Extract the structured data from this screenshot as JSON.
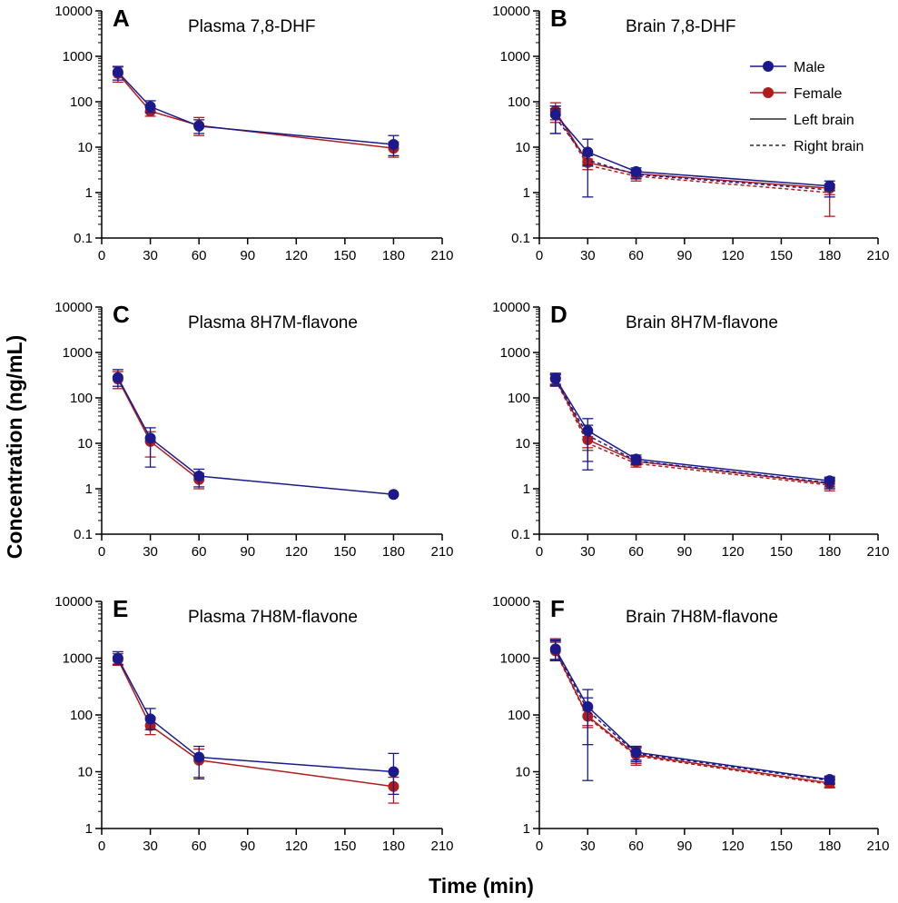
{
  "figure": {
    "ylabel": "Concentration (ng/mL)",
    "xlabel": "Time (min)"
  },
  "legend": {
    "items": [
      {
        "label": "Male",
        "kind": "marker",
        "color": "#1a1a8c"
      },
      {
        "label": "Female",
        "kind": "marker",
        "color": "#b01c1c"
      },
      {
        "label": "Left brain",
        "kind": "solid"
      },
      {
        "label": "Right brain",
        "kind": "dashed"
      }
    ]
  },
  "colors": {
    "male": "#1a1a8c",
    "female": "#b01c1c"
  },
  "chart_data": [
    {
      "letter": "A",
      "title": "Plasma 7,8-DHF",
      "type": "line",
      "xlim": [
        0,
        210
      ],
      "xticks": [
        0,
        30,
        60,
        90,
        120,
        150,
        180,
        210
      ],
      "ylim": [
        0.1,
        10000
      ],
      "yscale": "log",
      "yticks": [
        0.1,
        1,
        10,
        100,
        1000,
        10000
      ],
      "ytick_labels": [
        "0.1",
        "1",
        "10",
        "100",
        "1000",
        "10000"
      ],
      "x": [
        10,
        30,
        60,
        180
      ],
      "series": [
        {
          "name": "Female",
          "color": "female",
          "dash": false,
          "values": [
            420,
            62,
            30,
            9.5
          ],
          "err_low": [
            270,
            48,
            18,
            6
          ],
          "err_high": [
            580,
            80,
            45,
            13
          ]
        },
        {
          "name": "Male",
          "color": "male",
          "dash": false,
          "values": [
            450,
            78,
            29,
            11.5
          ],
          "err_low": [
            300,
            58,
            20,
            6.5
          ],
          "err_high": [
            600,
            105,
            40,
            18
          ]
        }
      ]
    },
    {
      "letter": "B",
      "title": "Brain 7,8-DHF",
      "type": "line",
      "xlim": [
        0,
        210
      ],
      "xticks": [
        0,
        30,
        60,
        90,
        120,
        150,
        180,
        210
      ],
      "ylim": [
        0.1,
        10000
      ],
      "yscale": "log",
      "yticks": [
        0.1,
        1,
        10,
        100,
        1000,
        10000
      ],
      "ytick_labels": [
        "0.1",
        "1",
        "10",
        "100",
        "1000",
        "10000"
      ],
      "x": [
        10,
        30,
        60,
        180
      ],
      "series": [
        {
          "name": "Female right brain",
          "color": "female",
          "dash": true,
          "values": [
            58,
            4.0,
            2.3,
            1.0
          ],
          "err_low": [
            35,
            3.2,
            1.8,
            0.3
          ],
          "err_high": [
            80,
            5.0,
            2.8,
            1.3
          ]
        },
        {
          "name": "Female left brain",
          "color": "female",
          "dash": false,
          "values": [
            62,
            4.6,
            2.6,
            1.25
          ],
          "err_low": [
            40,
            3.8,
            2.1,
            0.9
          ],
          "err_high": [
            95,
            5.5,
            3.0,
            1.5
          ]
        },
        {
          "name": "Male right brain",
          "color": "male",
          "dash": true,
          "values": [
            45,
            5.2,
            2.5,
            1.15
          ],
          "err_low": [
            20,
            4.0,
            2.0,
            0.8
          ],
          "err_high": [
            70,
            6.5,
            3.1,
            1.5
          ]
        },
        {
          "name": "Male left brain",
          "color": "male",
          "dash": false,
          "values": [
            52,
            7.8,
            2.9,
            1.4
          ],
          "err_low": [
            20,
            0.8,
            2.3,
            1.1
          ],
          "err_high": [
            80,
            15,
            3.5,
            1.8
          ]
        }
      ]
    },
    {
      "letter": "C",
      "title": "Plasma 8H7M-flavone",
      "type": "line",
      "xlim": [
        0,
        210
      ],
      "xticks": [
        0,
        30,
        60,
        90,
        120,
        150,
        180,
        210
      ],
      "ylim": [
        0.1,
        10000
      ],
      "yscale": "log",
      "yticks": [
        0.1,
        1,
        10,
        100,
        1000,
        10000
      ],
      "ytick_labels": [
        "0.1",
        "1",
        "10",
        "100",
        "1000",
        "10000"
      ],
      "x": [
        10,
        30,
        60,
        180
      ],
      "series": [
        {
          "name": "Female",
          "color": "female",
          "dash": false,
          "values": [
            260,
            11,
            1.6,
            null
          ],
          "err_low": [
            160,
            5.0,
            1.0,
            null
          ],
          "err_high": [
            380,
            18,
            2.2,
            null
          ]
        },
        {
          "name": "Male",
          "color": "male",
          "dash": false,
          "values": [
            280,
            13,
            1.9,
            0.75
          ],
          "err_low": [
            180,
            3.0,
            1.1,
            null
          ],
          "err_high": [
            420,
            22,
            2.7,
            null
          ]
        }
      ]
    },
    {
      "letter": "D",
      "title": "Brain 8H7M-flavone",
      "type": "line",
      "xlim": [
        0,
        210
      ],
      "xticks": [
        0,
        30,
        60,
        90,
        120,
        150,
        180,
        210
      ],
      "ylim": [
        0.1,
        10000
      ],
      "yscale": "log",
      "yticks": [
        0.1,
        1,
        10,
        100,
        1000,
        10000
      ],
      "ytick_labels": [
        "0.1",
        "1",
        "10",
        "100",
        "1000",
        "10000"
      ],
      "x": [
        10,
        30,
        60,
        180
      ],
      "series": [
        {
          "name": "Female right brain",
          "color": "female",
          "dash": true,
          "values": [
            250,
            10,
            3.6,
            1.2
          ],
          "err_low": [
            180,
            7,
            3.0,
            0.9
          ],
          "err_high": [
            320,
            14,
            4.4,
            1.5
          ]
        },
        {
          "name": "Female left brain",
          "color": "female",
          "dash": false,
          "values": [
            260,
            12,
            4.0,
            1.3
          ],
          "err_low": [
            190,
            8,
            3.3,
            1.0
          ],
          "err_high": [
            330,
            17,
            4.8,
            1.6
          ]
        },
        {
          "name": "Male right brain",
          "color": "male",
          "dash": true,
          "values": [
            255,
            15,
            4.1,
            1.35
          ],
          "err_low": [
            185,
            4,
            3.4,
            1.0
          ],
          "err_high": [
            325,
            25,
            5.0,
            1.7
          ]
        },
        {
          "name": "Male left brain",
          "color": "male",
          "dash": false,
          "values": [
            270,
            19,
            4.5,
            1.5
          ],
          "err_low": [
            200,
            2.6,
            3.6,
            1.1
          ],
          "err_high": [
            350,
            35,
            5.5,
            1.8
          ]
        }
      ]
    },
    {
      "letter": "E",
      "title": "Plasma 7H8M-flavone",
      "type": "line",
      "xlim": [
        0,
        210
      ],
      "xticks": [
        0,
        30,
        60,
        90,
        120,
        150,
        180,
        210
      ],
      "ylim": [
        1,
        10000
      ],
      "yscale": "log",
      "yticks": [
        1,
        10,
        100,
        1000,
        10000
      ],
      "ytick_labels": [
        "1",
        "10",
        "100",
        "1000",
        "10000"
      ],
      "x": [
        10,
        30,
        60,
        180
      ],
      "series": [
        {
          "name": "Female",
          "color": "female",
          "dash": false,
          "values": [
            950,
            65,
            16,
            5.5
          ],
          "err_low": [
            750,
            45,
            8,
            2.8
          ],
          "err_high": [
            1200,
            90,
            25,
            8
          ]
        },
        {
          "name": "Male",
          "color": "male",
          "dash": false,
          "values": [
            1000,
            85,
            18,
            10
          ],
          "err_low": [
            780,
            55,
            7.5,
            4
          ],
          "err_high": [
            1300,
            130,
            28,
            21
          ]
        }
      ]
    },
    {
      "letter": "F",
      "title": "Brain 7H8M-flavone",
      "type": "line",
      "xlim": [
        0,
        210
      ],
      "xticks": [
        0,
        30,
        60,
        90,
        120,
        150,
        180,
        210
      ],
      "ylim": [
        1,
        10000
      ],
      "yscale": "log",
      "yticks": [
        1,
        10,
        100,
        1000,
        10000
      ],
      "ytick_labels": [
        "1",
        "10",
        "100",
        "1000",
        "10000"
      ],
      "x": [
        10,
        30,
        60,
        180
      ],
      "series": [
        {
          "name": "Female right brain",
          "color": "female",
          "dash": true,
          "values": [
            1300,
            90,
            19,
            6.0
          ],
          "err_low": [
            900,
            60,
            13,
            5.2
          ],
          "err_high": [
            1900,
            120,
            26,
            7.0
          ]
        },
        {
          "name": "Female left brain",
          "color": "female",
          "dash": false,
          "values": [
            1350,
            95,
            20,
            6.3
          ],
          "err_low": [
            950,
            65,
            14,
            5.4
          ],
          "err_high": [
            2200,
            130,
            27,
            7.5
          ]
        },
        {
          "name": "Male right brain",
          "color": "male",
          "dash": true,
          "values": [
            1380,
            120,
            21,
            7.0
          ],
          "err_low": [
            900,
            30,
            15,
            6.0
          ],
          "err_high": [
            2000,
            200,
            28,
            8.0
          ]
        },
        {
          "name": "Male left brain",
          "color": "male",
          "dash": false,
          "values": [
            1450,
            140,
            22,
            7.3
          ],
          "err_low": [
            950,
            7,
            16,
            6.3
          ],
          "err_high": [
            2100,
            280,
            28,
            8.4
          ]
        }
      ]
    }
  ]
}
